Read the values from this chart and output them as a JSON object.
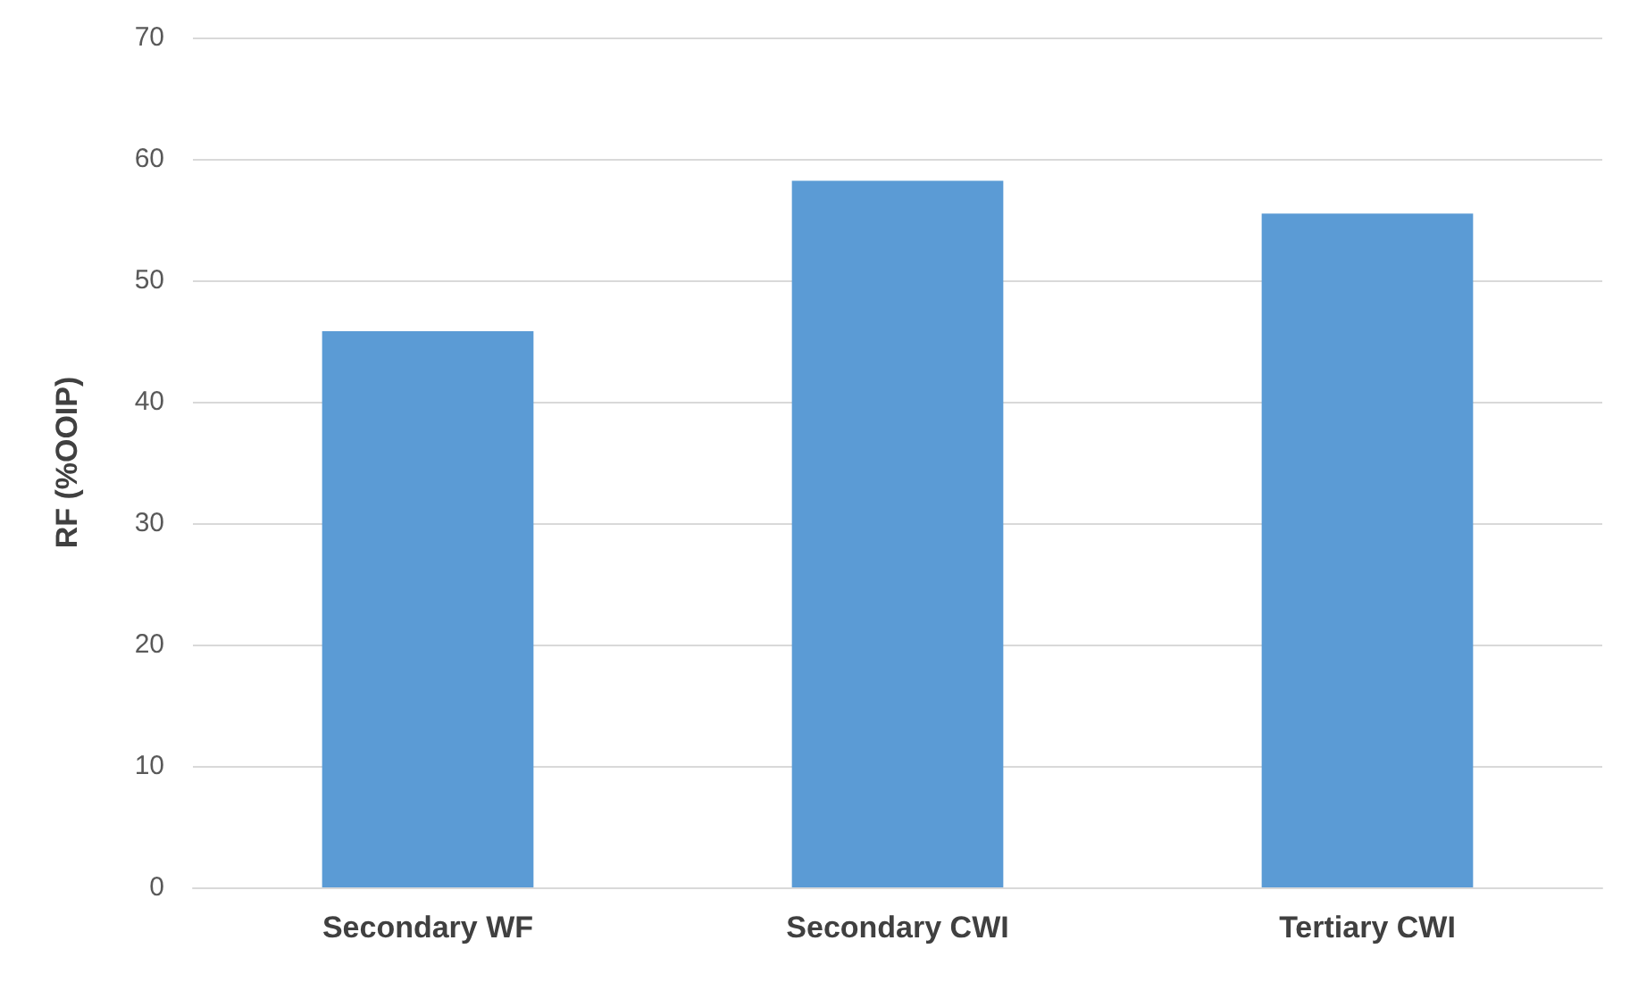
{
  "chart_data": {
    "type": "bar",
    "ylabel": "RF (%OOIP)",
    "categories": [
      "Secondary WF",
      "Secondary CWI",
      "Tertiary CWI"
    ],
    "values": [
      45.8,
      58.2,
      55.5
    ],
    "color": "#5b9bd5",
    "ylim": [
      0,
      70
    ],
    "yticks": [
      0,
      10,
      20,
      30,
      40,
      50,
      60,
      70
    ],
    "grid": "y"
  }
}
